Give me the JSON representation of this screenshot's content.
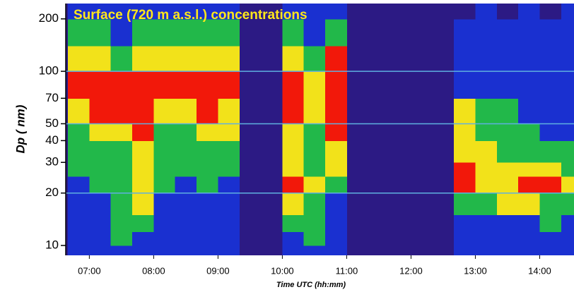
{
  "chart_data": {
    "type": "heatmap",
    "title": "Surface (720 m a.s.l.) concentrations",
    "x_label": "Time UTC (hh:mm)",
    "y_label": "Dp ( nm)",
    "log_y": true,
    "xlim": [
      "06:38",
      "14:32"
    ],
    "ylim": [
      8.78,
      245
    ],
    "xticks": [
      "07:00",
      "08:00",
      "09:00",
      "10:00",
      "11:00",
      "12:00",
      "13:00",
      "14:00"
    ],
    "yticks": [
      10,
      20,
      30,
      40,
      50,
      70,
      100,
      200
    ],
    "hlines": [
      20,
      50,
      100
    ],
    "hline_color": "#5fb0e0",
    "colorscale": [
      "#2c1a84",
      "#1a30d0",
      "#22b84a",
      "#f2e21a",
      "#f2180a"
    ],
    "x_bins": [
      "06:40",
      "07:00",
      "07:20",
      "07:40",
      "08:00",
      "08:20",
      "08:40",
      "09:00",
      "09:20",
      "09:40",
      "10:00",
      "10:20",
      "10:40",
      "11:00",
      "11:20",
      "11:40",
      "12:00",
      "12:20",
      "12:40",
      "13:00",
      "13:20",
      "13:40",
      "14:00",
      "14:20",
      "14:40"
    ],
    "y_bins": [
      8.78,
      10,
      12,
      15,
      20,
      25,
      30,
      40,
      50,
      70,
      100,
      140,
      200,
      245
    ],
    "z": [
      [
        1,
        1,
        1,
        1,
        1,
        1,
        1,
        1,
        null,
        null,
        1,
        1,
        1,
        null,
        null,
        null,
        null,
        null,
        1,
        1,
        1,
        1,
        1,
        1
      ],
      [
        1,
        1,
        2,
        1,
        1,
        1,
        1,
        1,
        null,
        null,
        1,
        2,
        1,
        null,
        null,
        null,
        null,
        null,
        1,
        1,
        1,
        1,
        1,
        1
      ],
      [
        1,
        1,
        2,
        2,
        1,
        1,
        1,
        1,
        null,
        null,
        2,
        2,
        1,
        null,
        null,
        null,
        null,
        null,
        1,
        1,
        1,
        1,
        2,
        1
      ],
      [
        1,
        1,
        2,
        3,
        1,
        1,
        1,
        1,
        null,
        null,
        3,
        2,
        1,
        null,
        null,
        null,
        null,
        null,
        2,
        2,
        3,
        3,
        2,
        2
      ],
      [
        1,
        2,
        2,
        3,
        2,
        1,
        2,
        1,
        null,
        null,
        4,
        3,
        2,
        null,
        null,
        null,
        null,
        null,
        4,
        3,
        3,
        4,
        4,
        3
      ],
      [
        2,
        2,
        2,
        3,
        2,
        2,
        2,
        2,
        null,
        null,
        3,
        2,
        3,
        null,
        null,
        null,
        null,
        null,
        4,
        3,
        3,
        3,
        3,
        2
      ],
      [
        2,
        2,
        2,
        3,
        2,
        2,
        2,
        2,
        null,
        null,
        3,
        2,
        3,
        null,
        null,
        null,
        null,
        null,
        3,
        3,
        2,
        2,
        2,
        2
      ],
      [
        2,
        3,
        3,
        4,
        2,
        2,
        3,
        3,
        null,
        null,
        3,
        2,
        4,
        null,
        null,
        null,
        null,
        null,
        3,
        2,
        2,
        2,
        1,
        1
      ],
      [
        3,
        4,
        4,
        4,
        3,
        3,
        4,
        3,
        null,
        null,
        4,
        3,
        4,
        null,
        null,
        null,
        null,
        null,
        3,
        2,
        2,
        1,
        1,
        1
      ],
      [
        4,
        4,
        4,
        4,
        4,
        4,
        4,
        4,
        null,
        null,
        4,
        3,
        4,
        null,
        null,
        null,
        null,
        null,
        1,
        1,
        1,
        1,
        1,
        1
      ],
      [
        3,
        3,
        2,
        3,
        3,
        3,
        3,
        3,
        null,
        null,
        3,
        2,
        4,
        null,
        null,
        null,
        null,
        null,
        1,
        1,
        1,
        1,
        1,
        1
      ],
      [
        2,
        2,
        1,
        2,
        2,
        2,
        2,
        2,
        null,
        null,
        2,
        1,
        2,
        null,
        null,
        null,
        null,
        null,
        1,
        1,
        1,
        1,
        1,
        1
      ],
      [
        1,
        1,
        1,
        1,
        1,
        1,
        1,
        1,
        null,
        null,
        1,
        1,
        1,
        null,
        null,
        null,
        null,
        null,
        0,
        1,
        0,
        1,
        0,
        1
      ]
    ]
  }
}
